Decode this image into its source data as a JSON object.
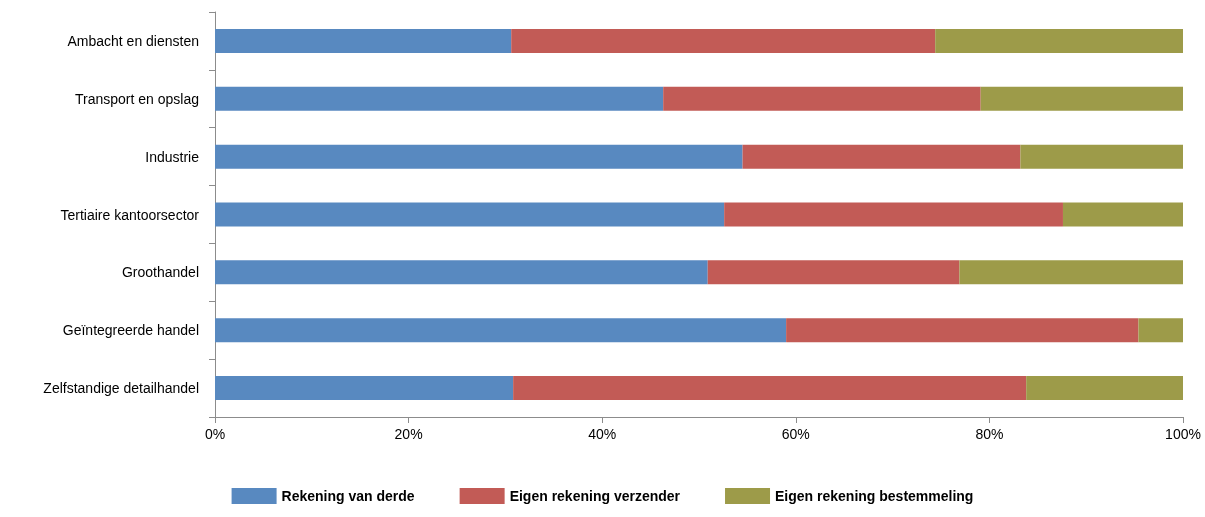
{
  "chart_data": {
    "type": "bar",
    "orientation": "horizontal",
    "stacked": true,
    "grid": false,
    "legend": "bottom",
    "categories": [
      "Ambacht en diensten",
      "Transport en opslag",
      "Industrie",
      "Tertiaire kantoorsector",
      "Groothandel",
      "Geïntegreerde handel",
      "Zelfstandige detailhandel"
    ],
    "xlim": [
      0,
      100
    ],
    "xticks": [
      {
        "value": 0,
        "label": "0%"
      },
      {
        "value": 20,
        "label": "20%"
      },
      {
        "value": 40,
        "label": "40%"
      },
      {
        "value": 60,
        "label": "60%"
      },
      {
        "value": 80,
        "label": "80%"
      },
      {
        "value": 100,
        "label": "100%"
      }
    ],
    "series": [
      {
        "name": "Rekening van derde",
        "color": "#5889c0",
        "values": [
          30.6,
          46.3,
          54.5,
          52.6,
          50.9,
          59.0,
          30.8
        ]
      },
      {
        "name": "Eigen rekening verzender",
        "color": "#c25b56",
        "values": [
          43.8,
          32.8,
          28.7,
          35.0,
          26.0,
          36.4,
          53.0
        ]
      },
      {
        "name": "Eigen rekening bestemmeling",
        "color": "#9d9b49",
        "values": [
          25.6,
          20.9,
          16.8,
          12.4,
          23.1,
          4.6,
          16.2
        ]
      }
    ]
  }
}
